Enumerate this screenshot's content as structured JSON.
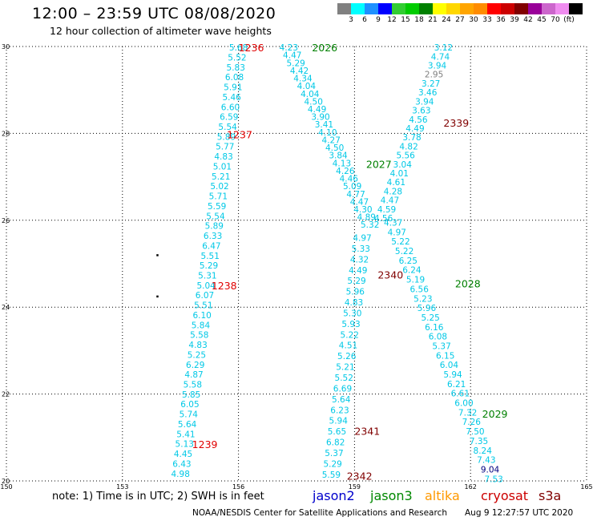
{
  "title": "12:00 – 23:59 UTC 08/08/2020",
  "subtitle": "12 hour collection of altimeter wave heights",
  "legend": {
    "colors": [
      "#808080",
      "#00ffff",
      "#1e90ff",
      "#0000ff",
      "#32cd32",
      "#00cc00",
      "#008000",
      "#ffff00",
      "#ffd700",
      "#ffa500",
      "#ff8c00",
      "#ff0000",
      "#cc0000",
      "#800000",
      "#990099",
      "#cc66cc",
      "#f08cf0",
      "#000000"
    ],
    "labels": [
      "3",
      "6",
      "9",
      "12",
      "15",
      "18",
      "21",
      "24",
      "27",
      "30",
      "33",
      "36",
      "39",
      "42",
      "45",
      "70",
      "(ft)"
    ]
  },
  "chart_data": {
    "type": "map-track",
    "x_ticks": [
      "150",
      "153",
      "156",
      "159",
      "162",
      "165"
    ],
    "y_ticks": [
      "30",
      "28",
      "26",
      "24",
      "22",
      "20"
    ],
    "xlim": [
      150,
      165
    ],
    "ylim": [
      20,
      30
    ],
    "labels": [
      {
        "text": "1236",
        "lon": 156.0,
        "lat": 29.98,
        "color": "#e00000"
      },
      {
        "text": "1237",
        "lon": 155.7,
        "lat": 27.98,
        "color": "#e00000"
      },
      {
        "text": "1238",
        "lon": 155.3,
        "lat": 24.5,
        "color": "#e00000"
      },
      {
        "text": "1239",
        "lon": 154.8,
        "lat": 20.85,
        "color": "#e00000"
      },
      {
        "text": "2026",
        "lon": 157.9,
        "lat": 29.98,
        "color": "#008000"
      },
      {
        "text": "2027",
        "lon": 159.3,
        "lat": 27.3,
        "color": "#008000"
      },
      {
        "text": "2028",
        "lon": 161.6,
        "lat": 24.55,
        "color": "#008000"
      },
      {
        "text": "2029",
        "lon": 162.3,
        "lat": 21.55,
        "color": "#008000"
      },
      {
        "text": "2339",
        "lon": 161.3,
        "lat": 28.25,
        "color": "#800000"
      },
      {
        "text": "2340",
        "lon": 159.6,
        "lat": 24.75,
        "color": "#800000"
      },
      {
        "text": "2341",
        "lon": 159.0,
        "lat": 21.15,
        "color": "#800000"
      },
      {
        "text": "2342",
        "lon": 158.8,
        "lat": 20.12,
        "color": "#800000"
      }
    ],
    "tracks": [
      {
        "name": "A",
        "start": [
          156.0,
          29.98
        ],
        "end": [
          154.5,
          20.17
        ],
        "values": [
          "5.68",
          "5.52",
          "5.83",
          "6.08",
          "5.91",
          "5.46",
          "6.60",
          "6.59",
          "5.54",
          "5.89",
          "5.77",
          "4.83",
          "5.01",
          "5.21",
          "5.02",
          "5.71",
          "5.59",
          "5.54",
          "5.89",
          "6.33",
          "6.47",
          "5.51",
          "5.29",
          "5.31",
          "5.04",
          "6.07",
          "5.51",
          "6.10",
          "5.84",
          "5.58",
          "4.83",
          "5.25",
          "6.29",
          "4.87",
          "5.58",
          "5.85",
          "6.05",
          "5.74",
          "5.64",
          "5.41",
          "5.13",
          "4.45",
          "6.43",
          "4.98"
        ],
        "colors": {}
      },
      {
        "name": "B",
        "start": [
          157.3,
          29.98
        ],
        "end": [
          159.4,
          25.9
        ],
        "values": [
          "4.23",
          "4.47",
          "5.29",
          "4.42",
          "4.34",
          "4.04",
          "4.04",
          "4.50",
          "4.49",
          "3.90",
          "3.41",
          "4.10",
          "4.27",
          "4.50",
          "3.84",
          "4.13",
          "4.26",
          "4.46",
          "5.09",
          "4.77",
          "4.47",
          "4.30",
          "4.89",
          "5.32"
        ],
        "colors": {}
      },
      {
        "name": "C",
        "start": [
          161.3,
          29.98
        ],
        "end": [
          159.75,
          26.05
        ],
        "values": [
          "3.12",
          "4.74",
          "3.94",
          "2.95",
          "3.27",
          "3.46",
          "3.94",
          "3.63",
          "4.56",
          "4.49",
          "3.78",
          "4.82",
          "5.56",
          "3.04",
          "4.01",
          "4.61",
          "4.28",
          "4.47",
          "4.59",
          "4.56"
        ],
        "colors": {
          "3": "#808080"
        }
      },
      {
        "name": "D",
        "start": [
          159.2,
          25.6
        ],
        "end": [
          158.4,
          20.15
        ],
        "values": [
          "4.97",
          "5.33",
          "4.32",
          "4.49",
          "5.29",
          "5.96",
          "4.83",
          "5.30",
          "5.93",
          "5.22",
          "4.51",
          "5.26",
          "5.21",
          "5.52",
          "6.69",
          "5.64",
          "6.23",
          "5.94",
          "5.65",
          "6.82",
          "5.37",
          "5.29",
          "5.59"
        ],
        "colors": {}
      },
      {
        "name": "E",
        "start": [
          160.0,
          25.95
        ],
        "end": [
          162.6,
          20.05
        ],
        "values": [
          "4.37",
          "4.97",
          "5.22",
          "5.22",
          "6.25",
          "6.24",
          "5.19",
          "6.56",
          "5.23",
          "5.96",
          "5.25",
          "6.16",
          "6.08",
          "5.37",
          "6.15",
          "6.04",
          "5.94",
          "6.21",
          "6.61",
          "6.00",
          "7.32",
          "7.26",
          "7.50",
          "7.35",
          "8.24",
          "7.43",
          "9.04",
          "7.53"
        ],
        "colors": {
          "26": "#000080"
        }
      }
    ],
    "dots": [
      {
        "lon": 153.9,
        "lat": 25.2
      },
      {
        "lon": 153.9,
        "lat": 24.25
      }
    ]
  },
  "note": "note:  1) Time is in UTC;  2) SWH is in feet",
  "satellites": [
    {
      "name": "jason2",
      "color": "#0000cc"
    },
    {
      "name": "jason3",
      "color": "#008800"
    },
    {
      "name": "altika",
      "color": "#ff9900"
    },
    {
      "name": "cryosat",
      "color": "#cc0000"
    },
    {
      "name": "s3a",
      "color": "#800000"
    }
  ],
  "footer_left": "NOAA/NESDIS Center for Satellite Applications and Research",
  "footer_right": "Aug  9 12:27:57 UTC 2020"
}
